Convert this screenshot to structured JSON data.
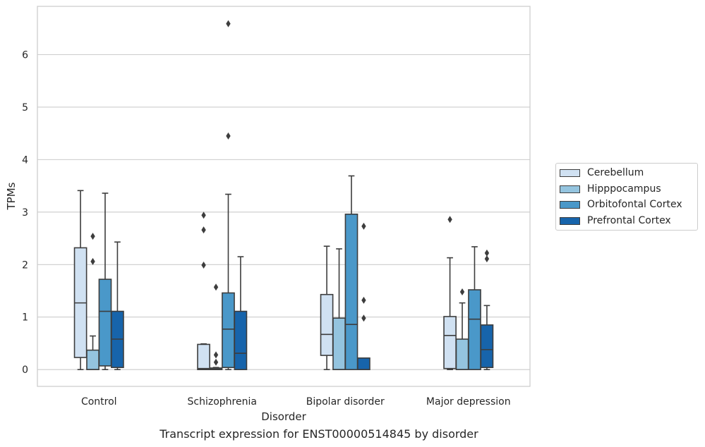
{
  "chart_data": {
    "type": "box",
    "title": "",
    "caption": "Transcript expression for ENST00000514845 by disorder",
    "xlabel": "Disorder",
    "ylabel": "TPMs",
    "ylim": [
      -0.32,
      6.92
    ],
    "yticks": [
      0,
      1,
      2,
      3,
      4,
      5,
      6
    ],
    "grid": true,
    "legend_position": "right",
    "categories": [
      "Control",
      "Schizophrenia",
      "Bipolar disorder",
      "Major depression"
    ],
    "series": [
      {
        "name": "Cerebellum",
        "color": "#d0e1f2",
        "boxes": [
          {
            "whisker_low": 0.0,
            "q1": 0.23,
            "median": 1.27,
            "q3": 2.32,
            "whisker_high": 3.41,
            "outliers": []
          },
          {
            "whisker_low": 0.0,
            "q1": 0.0,
            "median": 0.02,
            "q3": 0.48,
            "whisker_high": 0.49,
            "outliers": [
              1.99,
              2.66,
              2.94
            ]
          },
          {
            "whisker_low": 0.0,
            "q1": 0.27,
            "median": 0.67,
            "q3": 1.43,
            "whisker_high": 2.35,
            "outliers": []
          },
          {
            "whisker_low": 0.0,
            "q1": 0.02,
            "median": 0.65,
            "q3": 1.01,
            "whisker_high": 2.13,
            "outliers": [
              2.86
            ]
          }
        ]
      },
      {
        "name": "Hipppocampus",
        "color": "#94c4df",
        "boxes": [
          {
            "whisker_low": 0.0,
            "q1": 0.0,
            "median": 0.0,
            "q3": 0.37,
            "whisker_high": 0.64,
            "outliers": [
              2.06,
              2.54
            ]
          },
          {
            "whisker_low": 0.0,
            "q1": 0.0,
            "median": 0.01,
            "q3": 0.03,
            "whisker_high": 0.04,
            "outliers": [
              0.14,
              0.28,
              1.57
            ]
          },
          {
            "whisker_low": 0.0,
            "q1": 0.0,
            "median": 0.0,
            "q3": 0.98,
            "whisker_high": 2.3,
            "outliers": []
          },
          {
            "whisker_low": 0.0,
            "q1": 0.0,
            "median": 0.0,
            "q3": 0.58,
            "whisker_high": 1.27,
            "outliers": [
              1.48
            ]
          }
        ]
      },
      {
        "name": "Orbitofontal Cortex",
        "color": "#4a98c9",
        "boxes": [
          {
            "whisker_low": 0.0,
            "q1": 0.07,
            "median": 1.11,
            "q3": 1.72,
            "whisker_high": 3.36,
            "outliers": []
          },
          {
            "whisker_low": 0.0,
            "q1": 0.04,
            "median": 0.77,
            "q3": 1.46,
            "whisker_high": 3.34,
            "outliers": [
              4.45,
              6.59
            ]
          },
          {
            "whisker_low": 0.0,
            "q1": 0.0,
            "median": 0.86,
            "q3": 2.96,
            "whisker_high": 3.69,
            "outliers": []
          },
          {
            "whisker_low": 0.0,
            "q1": 0.0,
            "median": 0.96,
            "q3": 1.52,
            "whisker_high": 2.34,
            "outliers": []
          }
        ]
      },
      {
        "name": "Prefrontal Cortex",
        "color": "#1764ab",
        "boxes": [
          {
            "whisker_low": 0.0,
            "q1": 0.04,
            "median": 0.58,
            "q3": 1.11,
            "whisker_high": 2.43,
            "outliers": []
          },
          {
            "whisker_low": 0.0,
            "q1": 0.0,
            "median": 0.31,
            "q3": 1.11,
            "whisker_high": 2.15,
            "outliers": []
          },
          {
            "whisker_low": 0.0,
            "q1": 0.0,
            "median": 0.0,
            "q3": 0.22,
            "whisker_high": 0.22,
            "outliers": [
              0.98,
              1.32,
              2.73
            ]
          },
          {
            "whisker_low": 0.0,
            "q1": 0.04,
            "median": 0.38,
            "q3": 0.85,
            "whisker_high": 1.22,
            "outliers": [
              2.11,
              2.22
            ]
          }
        ]
      }
    ]
  }
}
